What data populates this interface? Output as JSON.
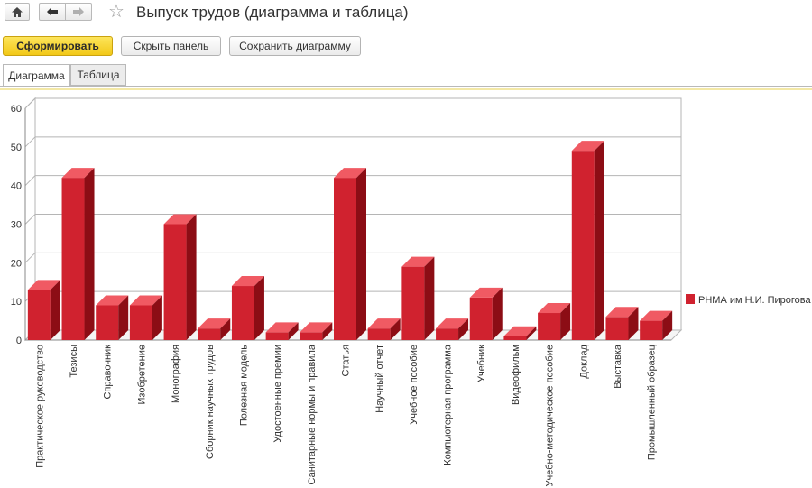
{
  "window": {
    "title": "Выпуск трудов (диаграмма и таблица)",
    "icons": [
      "home-icon",
      "back-arrow-icon",
      "forward-arrow-icon",
      "star-icon"
    ]
  },
  "toolbar": {
    "generate_label": "Сформировать",
    "hide_panel_label": "Скрыть панель",
    "save_chart_label": "Сохранить диаграмму"
  },
  "tabs": [
    {
      "label": "Диаграмма",
      "active": true
    },
    {
      "label": "Таблица",
      "active": false
    }
  ],
  "chart_data": {
    "type": "bar",
    "style": "3d",
    "categories": [
      "Практическое руководство",
      "Тезисы",
      "Справочник",
      "Изобретение",
      "Монография",
      "Сборник научных трудов",
      "Полезная модель",
      "Удостоенные премии",
      "Санитарные нормы и правила",
      "Статья",
      "Научный отчет",
      "Учебное пособие",
      "Компьютерная программа",
      "Учебник",
      "Видеофильм",
      "Учебно-методическое пособие",
      "Доклад",
      "Выставка",
      "Промышленный образец"
    ],
    "series": [
      {
        "name": "РНМА им Н.И. Пирогова",
        "values": [
          13,
          42,
          9,
          9,
          30,
          3,
          14,
          2,
          2,
          42,
          3,
          19,
          3,
          11,
          1,
          7,
          49,
          6,
          5
        ]
      }
    ],
    "ylim": [
      0,
      60
    ],
    "yticks": [
      0,
      10,
      20,
      30,
      40,
      50,
      60
    ],
    "grid": true,
    "legend": "right",
    "colors": {
      "front": "#d0222f",
      "top": "#f05a63",
      "side": "#8c0d15"
    }
  }
}
